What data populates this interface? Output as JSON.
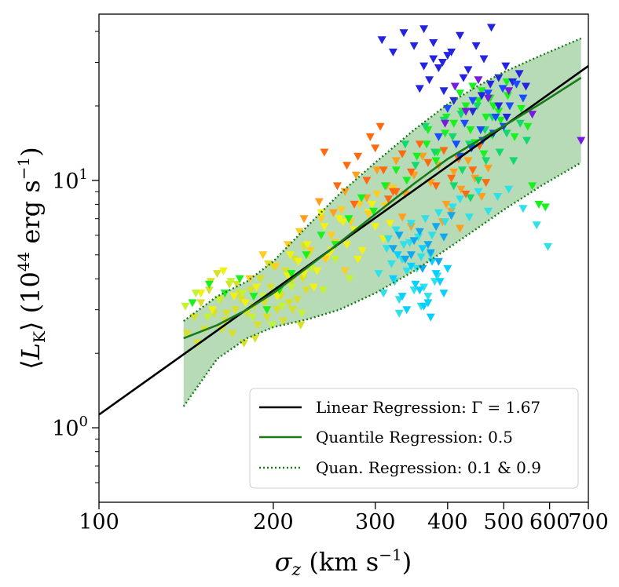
{
  "chart_data": {
    "type": "scatter",
    "x_scale": "log",
    "y_scale": "log",
    "xlim": [
      100,
      700
    ],
    "ylim": [
      0.5,
      47
    ],
    "x_ticks": [
      {
        "value": 100,
        "label": "100"
      },
      {
        "value": 200,
        "label": "200"
      },
      {
        "value": 300,
        "label": "300"
      },
      {
        "value": 400,
        "label": "400"
      },
      {
        "value": 500,
        "label": "500"
      },
      {
        "value": 600,
        "label": "600"
      },
      {
        "value": 700,
        "label": "700"
      }
    ],
    "y_ticks": [
      {
        "value": 1,
        "base": "10",
        "exp": "0"
      },
      {
        "value": 10,
        "base": "10",
        "exp": "1"
      }
    ],
    "xlabel": {
      "sym": "σ",
      "sub": "z",
      "units_pre": " (km s",
      "units_exp": "−1",
      "units_post": ")"
    },
    "ylabel": {
      "open": "⟨",
      "sym": "L",
      "sub": "K",
      "close": "⟩",
      "units_pre": " (10",
      "units_exp1": "44",
      "units_mid": " erg s",
      "units_exp2": "−1",
      "units_post": ")"
    },
    "grid": false,
    "legend_position": "lower-right",
    "legend": [
      {
        "label": "Linear Regression: Γ = 1.67",
        "style": "solid",
        "color": "#000000"
      },
      {
        "label": "Quantile Regression: 0.5",
        "style": "solid",
        "color": "#1a7a1a"
      },
      {
        "label": "Quan. Regression: 0.1 & 0.9",
        "style": "dotted",
        "color": "#1a7a1a"
      }
    ],
    "linear_regression": {
      "slope": 1.67,
      "points": [
        [
          100,
          1.13
        ],
        [
          700,
          29
        ]
      ]
    },
    "quantile_median": {
      "x": [
        140,
        160,
        180,
        200,
        250,
        300,
        350,
        400,
        450,
        500,
        580,
        680
      ],
      "y": [
        2.3,
        2.6,
        3.0,
        3.5,
        5.2,
        7.3,
        9.7,
        12.2,
        14.4,
        16.6,
        20.5,
        26.0
      ]
    },
    "quantile_upper": {
      "x": [
        140,
        160,
        180,
        200,
        230,
        260,
        300,
        350,
        400,
        450,
        500,
        580,
        680
      ],
      "y": [
        2.7,
        3.4,
        3.9,
        4.7,
        6.6,
        8.8,
        11.8,
        16.0,
        20.3,
        24.0,
        27.4,
        32.0,
        37.5
      ]
    },
    "quantile_lower": {
      "x": [
        140,
        160,
        180,
        200,
        230,
        260,
        300,
        350,
        400,
        450,
        500,
        580,
        680
      ],
      "y": [
        1.22,
        1.9,
        2.3,
        2.55,
        2.75,
        3.0,
        3.5,
        4.3,
        5.3,
        6.4,
        7.6,
        9.5,
        11.8
      ]
    },
    "fill_color": "#9fcf9f",
    "series": [
      {
        "color": "#d9e02a",
        "x": [
          142,
          146,
          150,
          152,
          155,
          158,
          160,
          162,
          165,
          168,
          170,
          172,
          175,
          178,
          180,
          183,
          185,
          188,
          190,
          193,
          195,
          198,
          200,
          203,
          205,
          208,
          210,
          213,
          215,
          218,
          220,
          223,
          225,
          228,
          230,
          148,
          156,
          166,
          176,
          186,
          196,
          206,
          216,
          226,
          163,
          173
        ],
        "y": [
          2.4,
          2.8,
          3.2,
          2.5,
          3.6,
          2.9,
          4.2,
          3.3,
          2.7,
          3.8,
          2.4,
          3.0,
          3.5,
          2.2,
          2.9,
          3.6,
          3.1,
          2.6,
          4.0,
          3.2,
          2.8,
          3.7,
          4.5,
          3.0,
          3.5,
          2.7,
          4.3,
          3.2,
          3.9,
          4.8,
          3.3,
          2.6,
          4.0,
          3.6,
          5.0,
          2.2,
          3.9,
          2.9,
          3.3,
          2.3,
          4.6,
          3.4,
          3.0,
          5.4,
          2.5,
          3.8
        ]
      },
      {
        "color": "#f2f20f",
        "x": [
          150,
          157,
          164,
          171,
          179,
          187,
          195,
          203,
          212,
          221,
          229,
          238,
          245,
          252,
          260,
          268,
          276,
          285,
          292,
          300,
          310,
          318,
          235,
          248,
          264,
          280,
          296,
          214,
          226,
          242
        ],
        "y": [
          3.5,
          3.0,
          4.3,
          3.4,
          3.2,
          3.7,
          3.0,
          3.4,
          4.1,
          4.7,
          5.5,
          4.3,
          6.5,
          5.2,
          7.0,
          5.5,
          6.3,
          5.2,
          7.4,
          6.5,
          5.8,
          6.7,
          3.7,
          4.9,
          6.8,
          4.8,
          8.0,
          5.0,
          4.2,
          7.4
        ]
      },
      {
        "color": "#c4f234",
        "x": [
          141,
          147,
          154,
          161,
          169,
          177,
          184,
          192,
          199,
          207,
          215,
          224,
          233,
          244,
          256,
          271
        ],
        "y": [
          3.1,
          3.5,
          2.8,
          3.3,
          3.9,
          3.5,
          2.8,
          3.4,
          2.6,
          3.1,
          3.7,
          2.9,
          4.4,
          3.6,
          4.8,
          4.0
        ]
      },
      {
        "color": "#ffcc22",
        "x": [
          182,
          192,
          202,
          212,
          222,
          232,
          242,
          252,
          262,
          272,
          282,
          292,
          302,
          312,
          322,
          256,
          266,
          246
        ],
        "y": [
          4.0,
          5.0,
          4.5,
          5.5,
          6.2,
          5.2,
          7.0,
          6.0,
          7.6,
          6.8,
          8.0,
          7.3,
          8.8,
          7.9,
          9.3,
          5.6,
          4.3,
          4.8
        ]
      },
      {
        "color": "#ff9f1c",
        "x": [
          226,
          240,
          254,
          266,
          278,
          290,
          302,
          314,
          326,
          338,
          350,
          362,
          374,
          386,
          398,
          410,
          422,
          434,
          446,
          458,
          470,
          392,
          406,
          420,
          334,
          346
        ],
        "y": [
          7.0,
          8.2,
          7.4,
          9.0,
          10.5,
          8.5,
          11.0,
          9.5,
          12.0,
          8.8,
          10.5,
          12.5,
          9.8,
          11.5,
          8.0,
          10.8,
          9.2,
          12.0,
          10.2,
          8.6,
          11.2,
          6.8,
          7.5,
          6.4,
          7.1,
          6.5
        ]
      },
      {
        "color": "#ff6a10",
        "x": [
          245,
          258,
          268,
          280,
          290,
          300,
          310,
          322,
          334,
          346,
          358,
          370,
          382,
          394,
          406,
          418,
          430,
          442,
          454,
          466,
          294,
          306,
          276,
          316,
          326
        ],
        "y": [
          13.0,
          9.5,
          11.5,
          12.5,
          10.0,
          13.5,
          11.0,
          9.0,
          12.8,
          10.8,
          14.0,
          11.8,
          9.5,
          13.2,
          10.2,
          12.2,
          8.8,
          11.0,
          13.8,
          9.8,
          15.0,
          16.5,
          8.0,
          8.4,
          9.0
        ]
      },
      {
        "color": "#17f21f",
        "x": [
          145,
          155,
          165,
          175,
          185,
          195,
          205,
          215,
          228,
          242,
          256,
          270,
          284,
          298,
          312,
          326,
          340,
          354,
          368,
          382,
          396,
          410,
          424,
          438,
          452,
          466,
          480,
          494,
          508,
          522,
          536,
          550,
          420,
          430,
          442,
          458,
          474,
          490,
          506,
          384,
          398,
          370,
          446,
          462,
          478,
          560,
          575,
          590
        ],
        "y": [
          3.2,
          3.8,
          3.5,
          4.0,
          3.4,
          3.0,
          3.6,
          4.2,
          5.0,
          6.0,
          5.5,
          7.0,
          8.5,
          7.5,
          9.5,
          11.0,
          10.0,
          12.5,
          14.0,
          12.0,
          15.5,
          17.0,
          19.0,
          16.0,
          21.0,
          18.0,
          20.0,
          17.5,
          22.0,
          15.0,
          19.5,
          16.5,
          22.5,
          20.0,
          24.0,
          23.0,
          21.5,
          19.0,
          25.0,
          13.0,
          18.0,
          16.0,
          14.2,
          12.8,
          15.2,
          9.5,
          8.0,
          7.8
        ]
      },
      {
        "color": "#12d96b",
        "x": [
          338,
          352,
          366,
          380,
          394,
          408,
          422,
          436,
          450,
          464,
          478,
          492,
          506,
          520,
          534,
          548,
          410,
          424,
          438,
          452,
          466
        ],
        "y": [
          14.0,
          11.5,
          16.5,
          13.0,
          17.5,
          15.0,
          18.5,
          14.0,
          20.0,
          16.0,
          18.0,
          13.0,
          15.5,
          12.0,
          17.0,
          14.5,
          9.5,
          11.0,
          8.5,
          10.0,
          12.0
        ]
      },
      {
        "color": "#2ee0e8",
        "x": [
          304,
          314,
          324,
          334,
          344,
          354,
          364,
          374,
          384,
          310,
          320,
          330,
          340,
          350,
          360,
          370,
          380,
          316,
          326,
          336,
          346,
          356,
          366,
          376,
          386,
          396,
          408,
          420,
          436,
          452,
          470,
          488,
          510,
          540,
          570,
          596,
          330,
          360
        ],
        "y": [
          4.2,
          5.3,
          3.9,
          4.8,
          5.6,
          4.4,
          3.7,
          5.0,
          4.1,
          3.5,
          4.6,
          3.3,
          4.3,
          3.6,
          4.9,
          3.4,
          3.9,
          5.8,
          6.3,
          5.5,
          6.7,
          5.9,
          7.0,
          6.0,
          7.4,
          6.8,
          7.8,
          8.4,
          7.1,
          9.0,
          7.5,
          8.6,
          9.2,
          7.7,
          6.6,
          5.4,
          2.9,
          3.1
        ]
      },
      {
        "color": "#0ad0ff",
        "x": [
          322,
          334,
          346,
          358,
          370,
          382,
          394,
          340,
          352,
          364,
          376,
          388,
          400,
          328,
          362,
          374
        ],
        "y": [
          4.0,
          3.4,
          4.5,
          3.6,
          3.2,
          4.2,
          3.5,
          3.0,
          3.8,
          3.1,
          4.7,
          3.9,
          4.4,
          5.0,
          5.3,
          2.8
        ]
      },
      {
        "color": "#12a8f0",
        "x": [
          322,
          338,
          350,
          362,
          374,
          386,
          330,
          346,
          358,
          370,
          382,
          394,
          406
        ],
        "y": [
          5.3,
          4.8,
          5.7,
          4.4,
          5.1,
          4.7,
          6.0,
          5.0,
          6.2,
          5.5,
          6.5,
          5.9,
          7.2
        ]
      },
      {
        "color": "#2323e0",
        "x": [
          308,
          322,
          336,
          350,
          364,
          378,
          392,
          406,
          420,
          434,
          448,
          462,
          476,
          490,
          504,
          518,
          532,
          546,
          394,
          410,
          426,
          442,
          458,
          474,
          490,
          506,
          364,
          378,
          358,
          372,
          386,
          400
        ],
        "y": [
          37.0,
          33.0,
          39.5,
          35.0,
          41.0,
          36.0,
          30.0,
          33.0,
          38.5,
          28.0,
          35.0,
          31.0,
          41.5,
          26.0,
          29.0,
          25.0,
          27.0,
          24.0,
          23.0,
          21.0,
          26.0,
          19.0,
          22.0,
          24.5,
          20.0,
          18.0,
          29.0,
          31.0,
          23.5,
          25.5,
          28.5,
          32.0
        ]
      },
      {
        "color": "#1a4cff",
        "x": [
          386,
          400,
          414,
          428,
          442,
          456,
          470,
          484,
          498,
          512,
          526,
          540,
          420,
          440,
          460,
          480,
          500
        ],
        "y": [
          15.0,
          19.5,
          14.0,
          17.0,
          21.0,
          16.0,
          22.5,
          18.0,
          23.5,
          20.0,
          24.5,
          21.5,
          12.5,
          13.5,
          14.5,
          15.5,
          16.5
        ]
      },
      {
        "color": "#7a1ae0",
        "x": [
          396,
          430,
          470,
          510,
          560,
          680,
          412,
          452
        ],
        "y": [
          17.0,
          19.0,
          21.5,
          23.0,
          18.5,
          14.5,
          24.0,
          25.5
        ]
      }
    ]
  }
}
